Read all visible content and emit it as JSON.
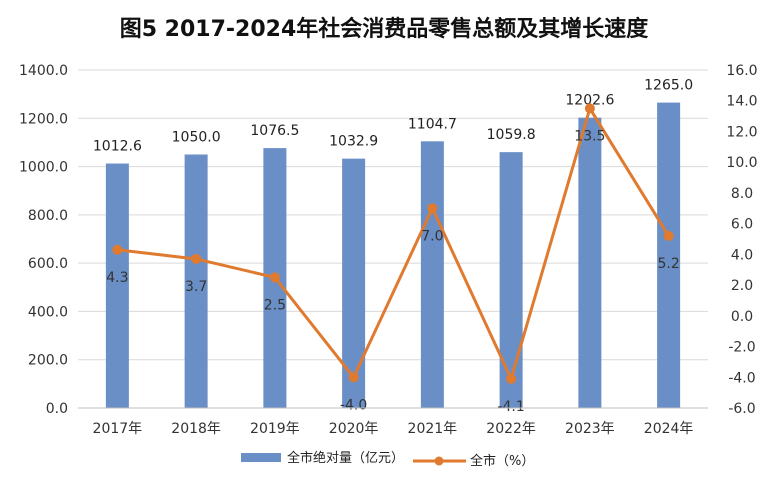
{
  "chart_data": {
    "type": "bar",
    "title": "图5 2017-2024年社会消费品零售总额及其增长速度",
    "categories": [
      "2017年",
      "2018年",
      "2019年",
      "2020年",
      "2021年",
      "2022年",
      "2023年",
      "2024年"
    ],
    "series": [
      {
        "name": "全市绝对量（亿元）",
        "type": "bar",
        "axis": "left",
        "values": [
          1012.6,
          1050.0,
          1076.5,
          1032.9,
          1104.7,
          1059.8,
          1202.6,
          1265.0
        ],
        "labels": [
          "1012.6",
          "1050.0",
          "1076.5",
          "1032.9",
          "1104.7",
          "1059.8",
          "1202.6",
          "1265.0"
        ]
      },
      {
        "name": "全市（%）",
        "type": "line",
        "axis": "right",
        "values": [
          4.3,
          3.7,
          2.5,
          -4.0,
          7.0,
          -4.1,
          13.5,
          5.2
        ],
        "labels": [
          "4.3",
          "3.7",
          "2.5",
          "-4.0",
          "7.0",
          "-4.1",
          "13.5",
          "5.2"
        ]
      }
    ],
    "y_left": {
      "ylim": [
        0,
        1400
      ],
      "ticks": [
        "0.0",
        "200.0",
        "400.0",
        "600.0",
        "800.0",
        "1000.0",
        "1200.0",
        "1400.0"
      ]
    },
    "y_right": {
      "ylim": [
        -6,
        16
      ],
      "ticks": [
        "-6.0",
        "-4.0",
        "-2.0",
        "0.0",
        "2.0",
        "4.0",
        "6.0",
        "8.0",
        "10.0",
        "12.0",
        "14.0",
        "16.0"
      ]
    },
    "grid": true,
    "legend_position": "bottom",
    "colors": {
      "bar": "#6a8fc6",
      "line": "#e07a2f"
    }
  }
}
